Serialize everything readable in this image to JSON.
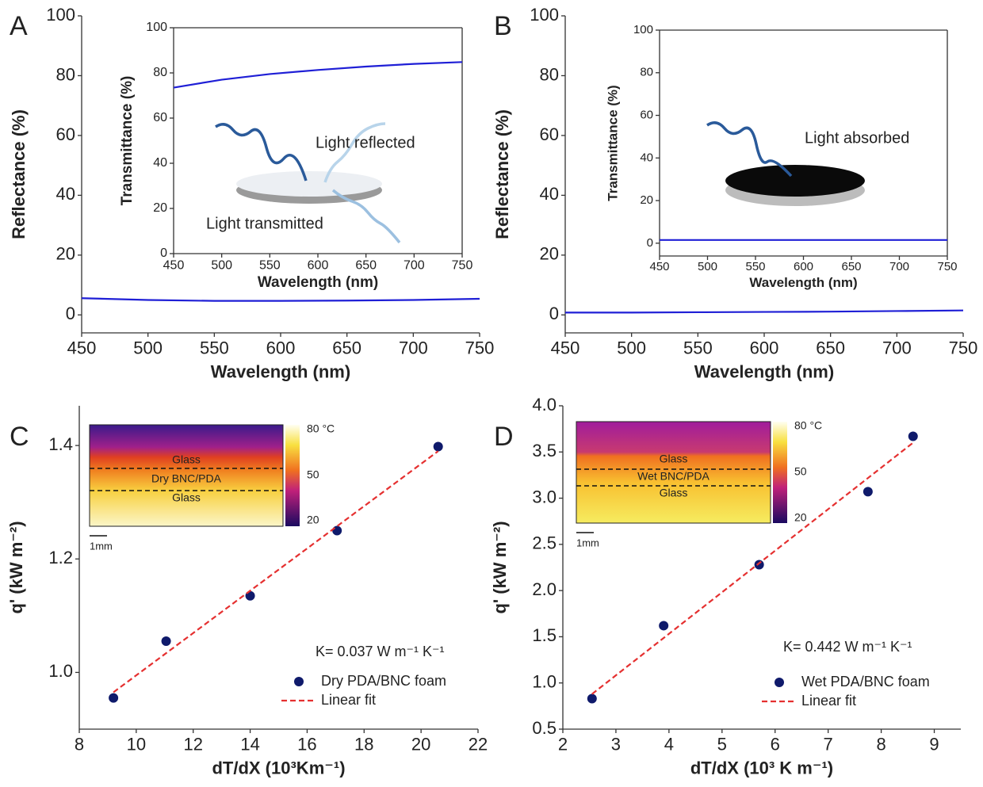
{
  "chart_data": [
    {
      "type": "line",
      "panel_label": "A",
      "x_label": "Wavelength (nm)",
      "y_label": "Reflectance (%)",
      "xlim": [
        450,
        750
      ],
      "xticks": [
        450,
        500,
        550,
        600,
        650,
        700,
        750
      ],
      "ylim": [
        -6,
        100
      ],
      "yticks": [
        0,
        20,
        40,
        60,
        80,
        100
      ],
      "series": [
        {
          "color": "#1f1fd6",
          "x": [
            450,
            500,
            550,
            600,
            650,
            700,
            750
          ],
          "values": [
            5.6,
            5.0,
            4.7,
            4.7,
            4.8,
            5.0,
            5.4
          ]
        }
      ],
      "inset": {
        "type": "line",
        "x_label": "Wavelength (nm)",
        "y_label": "Transmittance (%)",
        "xlim": [
          450,
          750
        ],
        "xticks": [
          450,
          500,
          550,
          600,
          650,
          700,
          750
        ],
        "ylim": [
          0,
          100
        ],
        "yticks": [
          0,
          20,
          40,
          60,
          80,
          100
        ],
        "series": [
          {
            "color": "#1f1fd6",
            "x": [
              450,
              500,
              550,
              600,
              650,
              700,
              750
            ],
            "values": [
              73.5,
              77,
              79.5,
              81.3,
              82.8,
              84,
              84.8
            ]
          }
        ],
        "annotations": [
          "Light reflected",
          "Light transmitted"
        ]
      }
    },
    {
      "type": "line",
      "panel_label": "B",
      "x_label": "Wavelength (nm)",
      "y_label": "Reflectance (%)",
      "xlim": [
        450,
        750
      ],
      "xticks": [
        450,
        500,
        550,
        600,
        650,
        700,
        750
      ],
      "ylim": [
        -6,
        100
      ],
      "yticks": [
        0,
        20,
        40,
        60,
        80,
        100
      ],
      "series": [
        {
          "color": "#1f1fd6",
          "x": [
            450,
            500,
            550,
            600,
            650,
            700,
            750
          ],
          "values": [
            0.8,
            0.8,
            0.9,
            1.0,
            1.1,
            1.3,
            1.5
          ]
        }
      ],
      "inset": {
        "type": "line",
        "x_label": "Wavelength (nm)",
        "y_label": "Transmittance (%)",
        "xlim": [
          450,
          750
        ],
        "xticks": [
          450,
          500,
          550,
          600,
          650,
          700,
          750
        ],
        "ylim": [
          -6,
          100
        ],
        "yticks": [
          0,
          20,
          40,
          60,
          80,
          100
        ],
        "series": [
          {
            "color": "#1f1fd6",
            "x": [
              450,
              500,
              550,
              600,
              650,
              700,
              750
            ],
            "values": [
              1.5,
              1.5,
              1.5,
              1.5,
              1.5,
              1.5,
              1.5
            ]
          }
        ],
        "annotations": [
          "Light absorbed"
        ]
      }
    },
    {
      "type": "scatter",
      "panel_label": "C",
      "x_label": "dT/dX (10³Km⁻¹)",
      "y_label": "q' (kW m⁻²)",
      "xlim": [
        8,
        22
      ],
      "xticks": [
        8,
        10,
        12,
        14,
        16,
        18,
        20,
        22
      ],
      "ylim": [
        0.9,
        1.47
      ],
      "yticks": [
        {
          "value": 1,
          "label": "1.0"
        },
        1.2,
        1.4
      ],
      "legend": "lower right",
      "series": [
        {
          "name": "Dry PDA/BNC foam",
          "color": "#0f1a6b",
          "style": "marker",
          "x": [
            9.2,
            11.05,
            14,
            17.05,
            20.6
          ],
          "values": [
            0.955,
            1.055,
            1.135,
            1.25,
            1.398
          ]
        },
        {
          "name": "Linear fit",
          "color": "#e53030",
          "style": "dashed",
          "x": [
            9.2,
            20.6
          ],
          "values": [
            0.965,
            1.39
          ]
        }
      ],
      "annotations": [
        "K= 0.037 W m⁻¹ K⁻¹"
      ],
      "image": {
        "layer_labels": [
          "Glass",
          "Dry BNC/PDA",
          "Glass"
        ],
        "colorbar_labels": [
          "80 °C",
          "50",
          "20"
        ],
        "scale_label": "1mm"
      }
    },
    {
      "type": "scatter",
      "panel_label": "D",
      "x_label": "dT/dX (10³ K m⁻¹)",
      "y_label": "q' (kW m⁻²)",
      "xlim": [
        2,
        9.5
      ],
      "xticks": [
        2,
        3,
        4,
        5,
        6,
        7,
        8,
        9
      ],
      "ylim": [
        0.5,
        4
      ],
      "yticks": [
        0.5,
        {
          "value": 1,
          "label": "1.0"
        },
        1.5,
        {
          "value": 2,
          "label": "2.0"
        },
        2.5,
        {
          "value": 3,
          "label": "3.0"
        },
        3.5,
        {
          "value": 4,
          "label": "4.0"
        }
      ],
      "legend": "lower right",
      "series": [
        {
          "name": "Wet PDA/BNC foam",
          "color": "#0f1a6b",
          "style": "marker",
          "x": [
            2.55,
            3.9,
            5.7,
            7.75,
            8.6
          ],
          "values": [
            0.83,
            1.62,
            2.28,
            3.07,
            3.67
          ]
        },
        {
          "name": "Linear fit",
          "color": "#e53030",
          "style": "dashed",
          "x": [
            2.55,
            8.6
          ],
          "values": [
            0.88,
            3.6
          ]
        }
      ],
      "annotations": [
        "K= 0.442 W m⁻¹ K⁻¹"
      ],
      "image": {
        "layer_labels": [
          "Glass",
          "Wet BNC/PDA",
          "Glass"
        ],
        "colorbar_labels": [
          "80 °C",
          "50",
          "20"
        ],
        "scale_label": "1mm"
      }
    }
  ]
}
